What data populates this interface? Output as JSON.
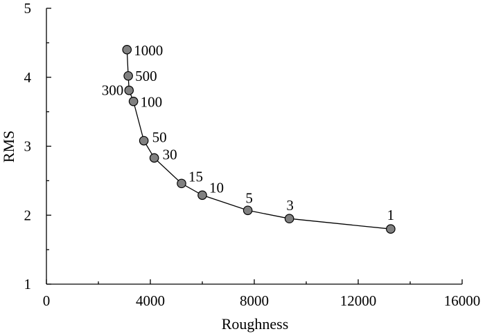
{
  "chart_data": {
    "type": "scatter",
    "title": "",
    "xlabel": "Roughness",
    "ylabel": "RMS",
    "xlim": [
      0,
      16000
    ],
    "ylim": [
      1,
      5
    ],
    "grid": false,
    "x_ticks": [
      "0",
      "4000",
      "8000",
      "12000",
      "16000"
    ],
    "y_ticks": [
      "1",
      "2",
      "3",
      "4",
      "5"
    ],
    "series": [
      {
        "points": [
          {
            "label": "1000",
            "x": 3100,
            "y": 4.4
          },
          {
            "label": "500",
            "x": 3150,
            "y": 4.02
          },
          {
            "label": "300",
            "x": 3180,
            "y": 3.81
          },
          {
            "label": "100",
            "x": 3350,
            "y": 3.65
          },
          {
            "label": "50",
            "x": 3750,
            "y": 3.08
          },
          {
            "label": "30",
            "x": 4150,
            "y": 2.83
          },
          {
            "label": "15",
            "x": 5200,
            "y": 2.46
          },
          {
            "label": "10",
            "x": 6000,
            "y": 2.29
          },
          {
            "label": "5",
            "x": 7750,
            "y": 2.07
          },
          {
            "label": "3",
            "x": 9350,
            "y": 1.95
          },
          {
            "label": "1",
            "x": 13250,
            "y": 1.8
          }
        ]
      }
    ],
    "marker_color": "#808080",
    "line_color": "#000000"
  }
}
